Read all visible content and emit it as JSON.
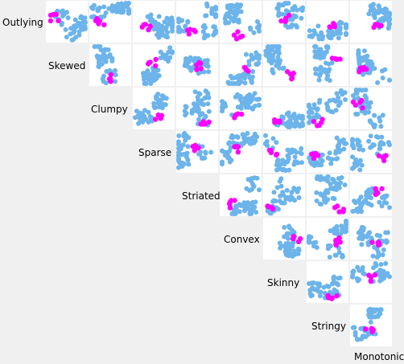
{
  "chart_data": {
    "type": "scatter",
    "matrix": "scagnostics scatterplot-matrix (upper triangle)",
    "variables": [
      "Outlying",
      "Skewed",
      "Clumpy",
      "Sparse",
      "Striated",
      "Convex",
      "Skinny",
      "Stringy",
      "Monotonic"
    ],
    "colors": {
      "background": "#f0f0f0",
      "cell": "#ffffff",
      "base_points": "#6cb4ea",
      "highlight_points": "#ff00ff"
    }
  }
}
